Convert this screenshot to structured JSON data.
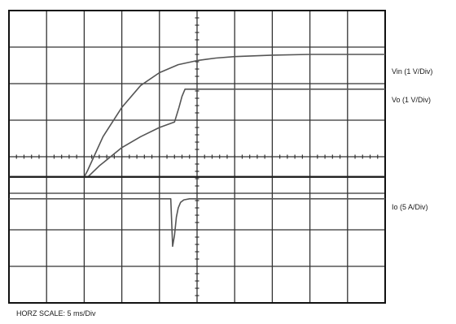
{
  "chart_data": {
    "type": "line",
    "title": "",
    "grid": true,
    "grid_divisions": {
      "x": 10,
      "y": 8
    },
    "xlabel": "HORZ SCALE: 5 ms/Div",
    "xlim": [
      0,
      10
    ],
    "ylim": [
      0,
      8
    ],
    "series": [
      {
        "name": "Vin (1 V/Div)",
        "x": [
          0,
          2.0,
          2.08,
          2.5,
          3.0,
          3.5,
          4.0,
          4.5,
          5.0,
          5.5,
          6.0,
          7.0,
          8.0,
          10.0
        ],
        "y": [
          3.45,
          3.45,
          3.6,
          4.55,
          5.35,
          5.95,
          6.3,
          6.52,
          6.63,
          6.7,
          6.74,
          6.78,
          6.8,
          6.8
        ]
      },
      {
        "name": "Vo (1 V/Div)",
        "x": [
          0,
          2.1,
          2.4,
          3.0,
          3.5,
          4.0,
          4.4,
          4.52,
          4.6,
          4.68,
          4.75,
          5.0,
          10.0
        ],
        "y": [
          3.45,
          3.45,
          3.75,
          4.25,
          4.55,
          4.8,
          4.95,
          5.35,
          5.65,
          5.85,
          5.85,
          5.85,
          5.85
        ]
      },
      {
        "name": "Io (5 A/Div)",
        "x": [
          0,
          4.3,
          4.35,
          4.4,
          4.45,
          4.5,
          4.56,
          4.65,
          4.8,
          5.0,
          10.0
        ],
        "y": [
          2.85,
          2.85,
          1.55,
          1.85,
          2.35,
          2.6,
          2.75,
          2.82,
          2.85,
          2.85,
          2.85
        ]
      },
      {
        "name": "",
        "x": [
          0,
          2.0,
          2.0,
          10.0
        ],
        "y": [
          3.45,
          3.45,
          3.45,
          3.45
        ]
      }
    ],
    "colors": {
      "trace": "#555555",
      "grid": "#333333",
      "frame": "#111111"
    }
  }
}
